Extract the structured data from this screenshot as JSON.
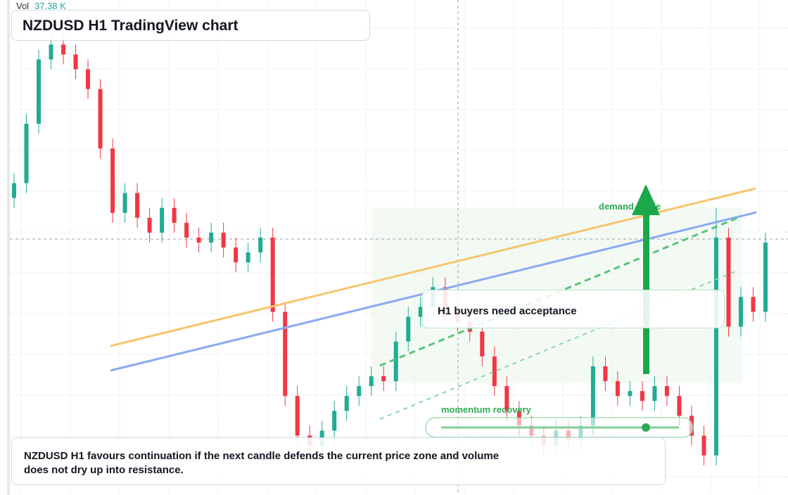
{
  "chart_data": {
    "type": "candlestick",
    "title": "NZDUSD H1 TradingView chart",
    "volume_label": "Vol",
    "volume_value": "37.38 K",
    "annotations": [
      "demand guide",
      "momentum recovery",
      "H1 buyers need acceptance"
    ],
    "footnote": "NZDUSD H1 favours continuation if the next candle defends the current price zone and volume does not dry up into resistance.",
    "up_color": "#22ab94",
    "down_color": "#f23645",
    "ylim": [
      0,
      100
    ],
    "candles": [
      [
        60,
        65,
        58,
        63
      ],
      [
        63,
        77,
        61,
        75
      ],
      [
        75,
        90,
        73,
        88
      ],
      [
        88,
        93,
        86,
        91
      ],
      [
        91,
        93,
        87,
        89
      ],
      [
        89,
        91,
        84,
        86
      ],
      [
        86,
        88,
        80,
        82
      ],
      [
        82,
        84,
        68,
        70
      ],
      [
        70,
        72,
        55,
        57
      ],
      [
        57,
        63,
        55,
        61
      ],
      [
        61,
        63,
        54,
        56
      ],
      [
        56,
        58,
        51,
        53
      ],
      [
        53,
        60,
        51,
        58
      ],
      [
        58,
        60,
        53,
        55
      ],
      [
        55,
        57,
        50,
        52
      ],
      [
        52,
        54,
        49,
        51
      ],
      [
        51,
        55,
        49,
        53
      ],
      [
        53,
        55,
        48,
        50
      ],
      [
        50,
        52,
        45,
        47
      ],
      [
        47,
        51,
        45,
        49
      ],
      [
        49,
        54,
        47,
        52
      ],
      [
        52,
        54,
        35,
        37
      ],
      [
        37,
        39,
        18,
        20
      ],
      [
        20,
        22,
        10,
        12
      ],
      [
        12,
        14,
        8,
        10
      ],
      [
        10,
        15,
        8,
        13
      ],
      [
        13,
        19,
        11,
        17
      ],
      [
        17,
        22,
        15,
        20
      ],
      [
        20,
        24,
        18,
        22
      ],
      [
        22,
        26,
        20,
        24
      ],
      [
        24,
        26,
        21,
        23
      ],
      [
        23,
        33,
        21,
        31
      ],
      [
        31,
        38,
        29,
        36
      ],
      [
        36,
        40,
        34,
        38
      ],
      [
        38,
        44,
        36,
        42
      ],
      [
        42,
        44,
        35,
        37
      ],
      [
        37,
        39,
        33,
        35
      ],
      [
        35,
        37,
        31,
        33
      ],
      [
        33,
        35,
        26,
        28
      ],
      [
        28,
        30,
        20,
        22
      ],
      [
        22,
        24,
        15,
        17
      ],
      [
        17,
        19,
        12,
        14
      ],
      [
        14,
        16,
        10,
        12
      ],
      [
        12,
        14,
        8,
        10
      ],
      [
        10,
        15,
        8,
        13
      ],
      [
        13,
        15,
        9,
        11
      ],
      [
        11,
        16,
        9,
        14
      ],
      [
        14,
        28,
        12,
        26
      ],
      [
        26,
        28,
        21,
        23
      ],
      [
        23,
        25,
        18,
        20
      ],
      [
        20,
        23,
        18,
        21
      ],
      [
        21,
        23,
        17,
        19
      ],
      [
        19,
        24,
        17,
        22
      ],
      [
        22,
        24,
        18,
        20
      ],
      [
        20,
        22,
        14,
        16
      ],
      [
        16,
        18,
        10,
        12
      ],
      [
        12,
        14,
        6,
        8
      ],
      [
        8,
        58,
        6,
        52
      ],
      [
        52,
        54,
        32,
        34
      ],
      [
        34,
        42,
        32,
        40
      ],
      [
        40,
        42,
        35,
        37
      ],
      [
        37,
        53,
        35,
        51
      ]
    ]
  }
}
